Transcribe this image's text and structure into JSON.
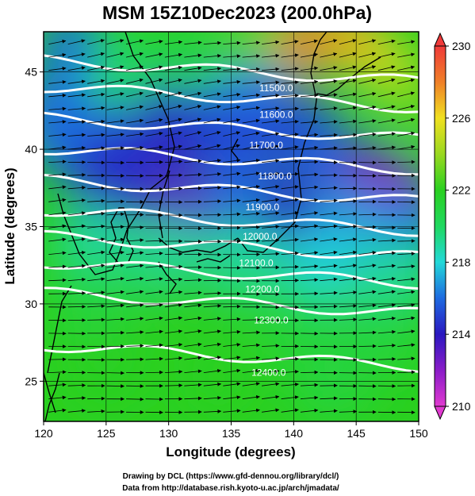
{
  "chart_data": {
    "type": "heatmap",
    "title": "MSM 15Z10Dec2023 (200.0hPa)",
    "xlabel": "Longitude (degrees)",
    "ylabel": "Latitude  (degrees)",
    "xlim": [
      120,
      150
    ],
    "ylim": [
      22.4,
      47.6
    ],
    "xticks": [
      120,
      125,
      130,
      135,
      140,
      145,
      150
    ],
    "yticks": [
      25,
      30,
      35,
      40,
      45
    ],
    "colorbar": {
      "min": 210,
      "max": 230,
      "ticks": [
        210,
        214,
        218,
        222,
        226,
        230
      ],
      "stops": [
        {
          "v": 210,
          "c": "#e03ad0"
        },
        {
          "v": 212,
          "c": "#8a1cc8"
        },
        {
          "v": 214,
          "c": "#2a18c0"
        },
        {
          "v": 216,
          "c": "#1e6ae0"
        },
        {
          "v": 218,
          "c": "#22d8d8"
        },
        {
          "v": 220,
          "c": "#20d860"
        },
        {
          "v": 222,
          "c": "#2ad020"
        },
        {
          "v": 224,
          "c": "#9ad820"
        },
        {
          "v": 226,
          "c": "#f0e020"
        },
        {
          "v": 228,
          "c": "#f08028"
        },
        {
          "v": 230,
          "c": "#f03a3a"
        }
      ]
    },
    "contours": [
      {
        "label": "11500.0",
        "x": 138.6,
        "y": 44.0
      },
      {
        "label": "11600.0",
        "x": 138.6,
        "y": 42.3
      },
      {
        "label": "11700.0",
        "x": 137.8,
        "y": 40.3
      },
      {
        "label": "11800.0",
        "x": 138.5,
        "y": 38.3
      },
      {
        "label": "11900.0",
        "x": 137.5,
        "y": 36.3
      },
      {
        "label": "12000.0",
        "x": 137.3,
        "y": 34.4
      },
      {
        "label": "12100.0",
        "x": 137.0,
        "y": 32.7
      },
      {
        "label": "12200.0",
        "x": 137.5,
        "y": 31.0
      },
      {
        "label": "12300.0",
        "x": 138.2,
        "y": 29.0
      },
      {
        "label": "12400.0",
        "x": 138.0,
        "y": 25.6
      }
    ],
    "wind_direction": "westerly"
  },
  "credits": {
    "line1": "Drawing by DCL (https://www.gfd-dennou.org/library/dcl/)",
    "line2": "Data from http://database.rish.kyoto-u.ac.jp/arch/jmadata/"
  }
}
